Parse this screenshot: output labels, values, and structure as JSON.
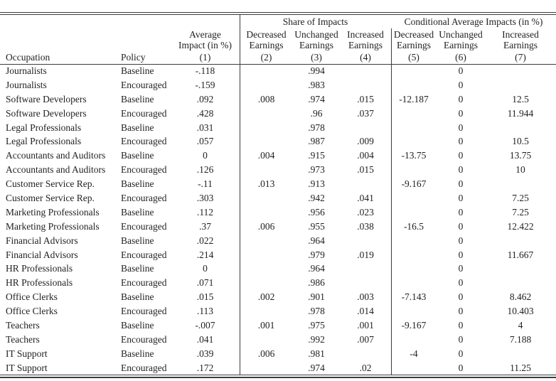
{
  "page": {
    "background": "#ffffff",
    "text_color": "#222222",
    "rule_color": "#3c3c3c"
  },
  "table": {
    "group_headers": {
      "share_of_impacts": "Share of Impacts",
      "conditional_average_impacts": "Conditional Average Impacts (in %)"
    },
    "columns": [
      {
        "label": "Occupation",
        "number": ""
      },
      {
        "label": "Policy",
        "number": ""
      },
      {
        "label_lines": [
          "Average",
          "Impact (in %)"
        ],
        "number": "(1)"
      },
      {
        "label_lines": [
          "Decreased",
          "Earnings"
        ],
        "number": "(2)"
      },
      {
        "label_lines": [
          "Unchanged",
          "Earnings"
        ],
        "number": "(3)"
      },
      {
        "label_lines": [
          "Increased",
          "Earnings"
        ],
        "number": "(4)"
      },
      {
        "label_lines": [
          "Decreased",
          "Earnings"
        ],
        "number": "(5)"
      },
      {
        "label_lines": [
          "Unchanged",
          "Earnings"
        ],
        "number": "(6)"
      },
      {
        "label_lines": [
          "Increased",
          "Earnings"
        ],
        "number": "(7)"
      }
    ],
    "rows": [
      [
        "Journalists",
        "Baseline",
        "-.118",
        "",
        ".994",
        "",
        "",
        "0",
        ""
      ],
      [
        "Journalists",
        "Encouraged",
        "-.159",
        "",
        ".983",
        "",
        "",
        "0",
        ""
      ],
      [
        "Software Developers",
        "Baseline",
        ".092",
        ".008",
        ".974",
        ".015",
        "-12.187",
        "0",
        "12.5"
      ],
      [
        "Software Developers",
        "Encouraged",
        ".428",
        "",
        ".96",
        ".037",
        "",
        "0",
        "11.944"
      ],
      [
        "Legal Professionals",
        "Baseline",
        ".031",
        "",
        ".978",
        "",
        "",
        "0",
        ""
      ],
      [
        "Legal Professionals",
        "Encouraged",
        ".057",
        "",
        ".987",
        ".009",
        "",
        "0",
        "10.5"
      ],
      [
        "Accountants and Auditors",
        "Baseline",
        "0",
        ".004",
        ".915",
        ".004",
        "-13.75",
        "0",
        "13.75"
      ],
      [
        "Accountants and Auditors",
        "Encouraged",
        ".126",
        "",
        ".973",
        ".015",
        "",
        "0",
        "10"
      ],
      [
        "Customer Service Rep.",
        "Baseline",
        "-.11",
        ".013",
        ".913",
        "",
        "-9.167",
        "0",
        ""
      ],
      [
        "Customer Service Rep.",
        "Encouraged",
        ".303",
        "",
        ".942",
        ".041",
        "",
        "0",
        "7.25"
      ],
      [
        "Marketing Professionals",
        "Baseline",
        ".112",
        "",
        ".956",
        ".023",
        "",
        "0",
        "7.25"
      ],
      [
        "Marketing Professionals",
        "Encouraged",
        ".37",
        ".006",
        ".955",
        ".038",
        "-16.5",
        "0",
        "12.422"
      ],
      [
        "Financial Advisors",
        "Baseline",
        ".022",
        "",
        ".964",
        "",
        "",
        "0",
        ""
      ],
      [
        "Financial Advisors",
        "Encouraged",
        ".214",
        "",
        ".979",
        ".019",
        "",
        "0",
        "11.667"
      ],
      [
        "HR Professionals",
        "Baseline",
        "0",
        "",
        ".964",
        "",
        "",
        "0",
        ""
      ],
      [
        "HR Professionals",
        "Encouraged",
        ".071",
        "",
        ".986",
        "",
        "",
        "0",
        ""
      ],
      [
        "Office Clerks",
        "Baseline",
        ".015",
        ".002",
        ".901",
        ".003",
        "-7.143",
        "0",
        "8.462"
      ],
      [
        "Office Clerks",
        "Encouraged",
        ".113",
        "",
        ".978",
        ".014",
        "",
        "0",
        "10.403"
      ],
      [
        "Teachers",
        "Baseline",
        "-.007",
        ".001",
        ".975",
        ".001",
        "-9.167",
        "0",
        "4"
      ],
      [
        "Teachers",
        "Encouraged",
        ".041",
        "",
        ".992",
        ".007",
        "",
        "0",
        "7.188"
      ],
      [
        "IT Support",
        "Baseline",
        ".039",
        ".006",
        ".981",
        "",
        "-4",
        "0",
        ""
      ],
      [
        "IT Support",
        "Encouraged",
        ".172",
        "",
        ".974",
        ".02",
        "",
        "0",
        "11.25"
      ]
    ]
  }
}
